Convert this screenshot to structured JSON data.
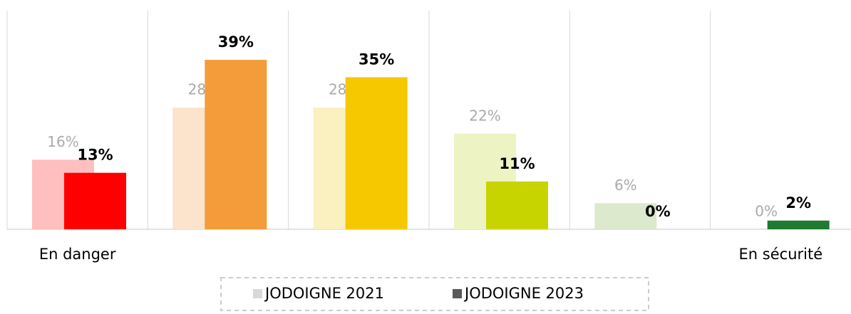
{
  "chart_data": {
    "type": "bar",
    "categories": [
      "En danger",
      null,
      null,
      null,
      null,
      "En sécurité"
    ],
    "ylim": [
      0,
      50
    ],
    "series": [
      {
        "name": "JODOIGNE 2021",
        "color": "#d9d9d9",
        "colors": [
          "#ffbfbf",
          "#fbe3cc",
          "#fbf0bf",
          "#eef3c4",
          "#dde9cc",
          "#cfe3cf"
        ],
        "values": [
          16,
          28,
          28,
          22,
          6,
          0
        ],
        "value_labels": [
          "16%",
          "28%",
          "28%",
          "22%",
          "6%",
          "0%"
        ]
      },
      {
        "name": "JODOIGNE 2023",
        "color": "#595959",
        "colors": [
          "#ff0000",
          "#f39c39",
          "#f5c800",
          "#c8d400",
          "#8fbf3f",
          "#1e7b30"
        ],
        "values": [
          13,
          39,
          35,
          11,
          0,
          2
        ],
        "value_labels": [
          "13%",
          "39%",
          "35%",
          "11%",
          "0%",
          "2%"
        ]
      }
    ]
  }
}
